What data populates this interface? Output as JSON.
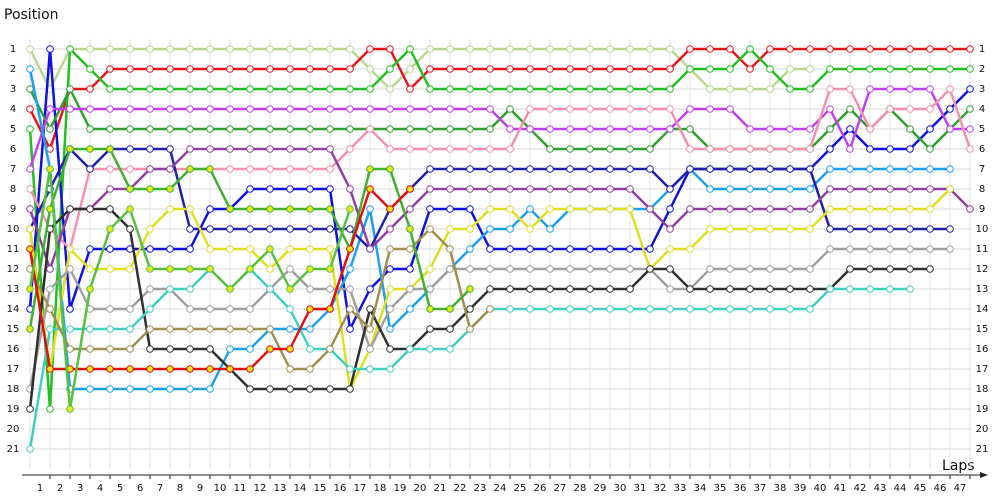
{
  "chart_data": {
    "type": "line",
    "y_label": "Position",
    "x_label": "Laps",
    "inverted_y": true,
    "grid": true,
    "x": [
      0,
      1,
      2,
      3,
      4,
      5,
      6,
      7,
      8,
      9,
      10,
      11,
      12,
      13,
      14,
      15,
      16,
      17,
      18,
      19,
      20,
      21,
      22,
      23,
      24,
      25,
      26,
      27,
      28,
      29,
      30,
      31,
      32,
      33,
      34,
      35,
      36,
      37,
      38,
      39,
      40,
      41,
      42,
      43,
      44,
      45,
      46,
      47
    ],
    "xlim": [
      0,
      47
    ],
    "xticks": [
      1,
      2,
      3,
      4,
      5,
      6,
      7,
      8,
      9,
      10,
      11,
      12,
      13,
      14,
      15,
      16,
      17,
      18,
      19,
      20,
      21,
      22,
      23,
      24,
      25,
      26,
      27,
      28,
      29,
      30,
      31,
      32,
      33,
      34,
      35,
      36,
      37,
      38,
      39,
      40,
      41,
      42,
      43,
      44,
      45,
      46,
      47
    ],
    "ylim": [
      0,
      22
    ],
    "yticks": [
      1,
      2,
      3,
      4,
      5,
      6,
      7,
      8,
      9,
      10,
      11,
      12,
      13,
      14,
      15,
      16,
      17,
      18,
      19,
      20,
      21
    ],
    "series": [
      {
        "color": "#b8d890",
        "marker_color": "#ffffff",
        "values": [
          1,
          3,
          1,
          1,
          1,
          1,
          1,
          1,
          1,
          1,
          1,
          1,
          1,
          1,
          1,
          1,
          1,
          2,
          3,
          2,
          1,
          1,
          1,
          1,
          1,
          1,
          1,
          1,
          1,
          1,
          1,
          1,
          1,
          2,
          3,
          3,
          3,
          3,
          2,
          2,
          null,
          null,
          null,
          null,
          null,
          null,
          null,
          null
        ]
      },
      {
        "color": "#e8141c",
        "marker_color": "#ffffff",
        "values": [
          4,
          6,
          3,
          3,
          2,
          2,
          2,
          2,
          2,
          2,
          2,
          2,
          2,
          2,
          2,
          2,
          2,
          1,
          1,
          3,
          2,
          2,
          2,
          2,
          2,
          2,
          2,
          2,
          2,
          2,
          2,
          2,
          2,
          1,
          1,
          1,
          2,
          1,
          1,
          1,
          1,
          1,
          1,
          1,
          1,
          1,
          1,
          1
        ]
      },
      {
        "color": "#22c022",
        "marker_color": "#ffffff",
        "values": [
          5,
          19,
          1,
          2,
          3,
          3,
          3,
          3,
          3,
          3,
          3,
          3,
          3,
          3,
          3,
          3,
          3,
          3,
          2,
          1,
          3,
          3,
          3,
          3,
          3,
          3,
          3,
          3,
          3,
          3,
          3,
          3,
          3,
          2,
          2,
          2,
          1,
          2,
          3,
          3,
          2,
          2,
          2,
          2,
          2,
          2,
          2,
          2
        ]
      },
      {
        "color": "#1010e0",
        "marker_color": "#ffffff",
        "values": [
          14,
          1,
          14,
          11,
          11,
          11,
          11,
          11,
          11,
          9,
          9,
          8,
          8,
          8,
          8,
          8,
          15,
          13,
          12,
          12,
          9,
          9,
          9,
          11,
          11,
          11,
          11,
          11,
          11,
          11,
          11,
          11,
          9,
          7,
          7,
          7,
          7,
          7,
          7,
          7,
          6,
          5,
          6,
          6,
          6,
          5,
          4,
          3
        ]
      },
      {
        "color": "#30a030",
        "marker_color": "#ffffff",
        "values": [
          3,
          5,
          3,
          5,
          5,
          5,
          5,
          5,
          5,
          5,
          5,
          5,
          5,
          5,
          5,
          5,
          5,
          5,
          5,
          5,
          5,
          5,
          5,
          5,
          4,
          5,
          6,
          6,
          6,
          6,
          6,
          6,
          5,
          5,
          6,
          6,
          6,
          6,
          6,
          6,
          5,
          4,
          5,
          4,
          5,
          6,
          5,
          4
        ]
      },
      {
        "color": "#c040f0",
        "marker_color": "#ffffff",
        "values": [
          7,
          4,
          4,
          4,
          4,
          4,
          4,
          4,
          4,
          4,
          4,
          4,
          4,
          4,
          4,
          4,
          4,
          4,
          4,
          4,
          4,
          4,
          4,
          4,
          5,
          5,
          5,
          5,
          5,
          5,
          5,
          5,
          5,
          4,
          4,
          4,
          5,
          5,
          5,
          5,
          4,
          6,
          3,
          3,
          3,
          3,
          5,
          5
        ]
      },
      {
        "color": "#f590b0",
        "marker_color": "#ffffff",
        "values": [
          8,
          10,
          11,
          7,
          7,
          7,
          7,
          7,
          7,
          7,
          7,
          7,
          7,
          7,
          7,
          7,
          6,
          5,
          6,
          6,
          6,
          6,
          6,
          6,
          6,
          4,
          4,
          4,
          4,
          4,
          4,
          4,
          4,
          6,
          6,
          6,
          6,
          6,
          6,
          6,
          3,
          3,
          5,
          4,
          4,
          4,
          3,
          6
        ]
      },
      {
        "color": "#1ea0f0",
        "marker_color": "#ffffff",
        "values": [
          2,
          7,
          18,
          18,
          18,
          18,
          18,
          18,
          18,
          18,
          16,
          16,
          15,
          15,
          15,
          14,
          12,
          9,
          15,
          14,
          13,
          12,
          11,
          10,
          10,
          9,
          10,
          9,
          9,
          9,
          9,
          9,
          8,
          7,
          8,
          8,
          8,
          8,
          8,
          8,
          7,
          7,
          7,
          7,
          7,
          7,
          7,
          null
        ]
      },
      {
        "color": "#2020a8",
        "marker_color": "#ffffff",
        "values": [
          10,
          8,
          6,
          7,
          6,
          6,
          6,
          6,
          10,
          10,
          10,
          10,
          10,
          10,
          10,
          10,
          10,
          11,
          9,
          8,
          7,
          7,
          7,
          7,
          7,
          7,
          7,
          7,
          7,
          7,
          7,
          7,
          8,
          7,
          7,
          7,
          7,
          7,
          7,
          7,
          10,
          10,
          10,
          10,
          10,
          10,
          10,
          null
        ]
      },
      {
        "color": "#9040a0",
        "marker_color": "#ffffff",
        "values": [
          9,
          12,
          9,
          9,
          8,
          8,
          7,
          7,
          6,
          6,
          6,
          6,
          6,
          6,
          6,
          6,
          8,
          11,
          10,
          9,
          8,
          8,
          8,
          8,
          8,
          8,
          8,
          8,
          8,
          8,
          8,
          9,
          10,
          9,
          9,
          9,
          9,
          9,
          9,
          9,
          8,
          8,
          8,
          8,
          8,
          8,
          8,
          9
        ]
      },
      {
        "color": "#e0e020",
        "marker_color": "#ffffff",
        "values": [
          10,
          17,
          11,
          12,
          12,
          12,
          10,
          9,
          9,
          11,
          11,
          11,
          12,
          11,
          11,
          11,
          18,
          16,
          13,
          13,
          12,
          10,
          10,
          9,
          9,
          10,
          9,
          9,
          9,
          9,
          9,
          12,
          11,
          11,
          10,
          10,
          10,
          10,
          10,
          10,
          9,
          9,
          9,
          9,
          9,
          9,
          8,
          null
        ]
      },
      {
        "color": "#a0a0a0",
        "marker_color": "#ffffff",
        "values": [
          18,
          13,
          12,
          14,
          14,
          14,
          13,
          13,
          14,
          14,
          14,
          14,
          13,
          12,
          13,
          13,
          13,
          16,
          14,
          13,
          13,
          12,
          12,
          12,
          12,
          12,
          12,
          12,
          12,
          12,
          12,
          12,
          13,
          13,
          12,
          12,
          12,
          12,
          12,
          12,
          11,
          11,
          11,
          11,
          11,
          11,
          11,
          null
        ]
      },
      {
        "color": "#303030",
        "marker_color": "#ffffff",
        "values": [
          19,
          10,
          9,
          9,
          9,
          10,
          16,
          16,
          16,
          16,
          17,
          18,
          18,
          18,
          18,
          18,
          18,
          14,
          16,
          16,
          15,
          15,
          14,
          13,
          13,
          13,
          13,
          13,
          13,
          13,
          13,
          12,
          12,
          13,
          13,
          13,
          13,
          13,
          13,
          13,
          13,
          12,
          12,
          12,
          12,
          12,
          null,
          null
        ]
      },
      {
        "color": "#40d0c0",
        "marker_color": "#ffffff",
        "values": [
          21,
          15,
          15,
          15,
          15,
          15,
          14,
          13,
          13,
          12,
          13,
          12,
          13,
          14,
          16,
          16,
          17,
          17,
          17,
          16,
          16,
          16,
          15,
          14,
          14,
          14,
          14,
          14,
          14,
          14,
          14,
          14,
          14,
          14,
          14,
          14,
          14,
          14,
          14,
          14,
          13,
          13,
          13,
          13,
          13,
          null,
          null,
          null
        ]
      },
      {
        "color": "#a09050",
        "marker_color": "#ffffff",
        "values": [
          12,
          14,
          16,
          16,
          16,
          16,
          15,
          15,
          15,
          15,
          15,
          15,
          15,
          17,
          17,
          16,
          14,
          15,
          11,
          11,
          10,
          11,
          15,
          14,
          null,
          null,
          null,
          null,
          null,
          null,
          null,
          null,
          null,
          null,
          null,
          null,
          null,
          null,
          null,
          null,
          null,
          null,
          null,
          null,
          null,
          null,
          null,
          null
        ]
      },
      {
        "color": "#40b030",
        "marker_color": "#e8e820",
        "values": [
          15,
          9,
          6,
          6,
          6,
          8,
          8,
          8,
          7,
          7,
          9,
          9,
          9,
          9,
          9,
          9,
          11,
          7,
          7,
          10,
          14,
          14,
          13,
          null,
          null,
          null,
          null,
          null,
          null,
          null,
          null,
          null,
          null,
          null,
          null,
          null,
          null,
          null,
          null,
          null,
          null,
          null,
          null,
          null,
          null,
          null,
          null,
          null
        ]
      },
      {
        "color": "#e01010",
        "marker_color": "#e8e820",
        "values": [
          11,
          17,
          17,
          17,
          17,
          17,
          17,
          17,
          17,
          17,
          17,
          17,
          16,
          16,
          14,
          14,
          11,
          8,
          9,
          8,
          null,
          null,
          null,
          null,
          null,
          null,
          null,
          null,
          null,
          null,
          null,
          null,
          null,
          null,
          null,
          null,
          null,
          null,
          null,
          null,
          null,
          null,
          null,
          null,
          null,
          null,
          null,
          null
        ]
      },
      {
        "color": "#58c040",
        "marker_color": "#e8e820",
        "values": [
          13,
          7,
          19,
          13,
          10,
          9,
          12,
          12,
          12,
          12,
          13,
          12,
          11,
          13,
          12,
          12,
          9,
          null,
          null,
          null,
          null,
          null,
          null,
          null,
          null,
          null,
          null,
          null,
          null,
          null,
          null,
          null,
          null,
          null,
          null,
          null,
          null,
          null,
          null,
          null,
          null,
          null,
          null,
          null,
          null,
          null,
          null,
          null
        ]
      }
    ]
  }
}
